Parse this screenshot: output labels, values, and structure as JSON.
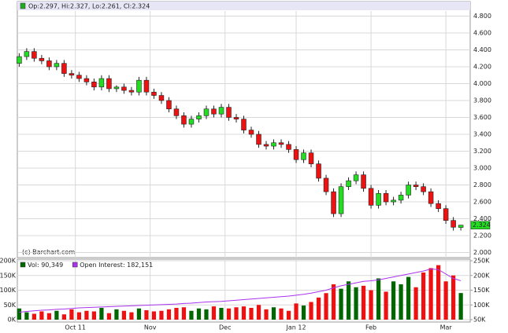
{
  "chart_data": [
    {
      "type": "candlestick",
      "header": "Op:2.297, Hi:2.327, Lo:2.261, Cl:2.324",
      "credit": "(c) Barchart.com",
      "last_label": "2.324",
      "up_color": "#22dd22",
      "down_color": "#ee1111",
      "grid": true,
      "x": [
        0,
        2,
        4,
        6,
        8,
        10,
        12,
        14,
        16,
        18,
        20,
        22,
        24,
        26,
        28,
        30,
        32,
        34,
        36,
        38,
        40,
        42,
        44,
        46,
        48,
        50,
        52,
        54,
        56,
        58,
        60,
        62,
        64,
        66,
        68,
        70,
        72,
        74,
        76,
        78,
        80,
        82,
        84,
        86,
        88,
        90,
        92,
        94,
        96,
        98,
        100,
        102,
        104,
        106,
        108,
        110,
        112,
        114,
        116,
        118
      ],
      "open": [
        4.24,
        4.32,
        4.38,
        4.3,
        4.27,
        4.2,
        4.24,
        4.12,
        4.1,
        4.06,
        4.02,
        3.96,
        4.06,
        3.94,
        3.96,
        3.92,
        3.9,
        4.04,
        3.9,
        3.86,
        3.8,
        3.7,
        3.62,
        3.52,
        3.58,
        3.62,
        3.7,
        3.64,
        3.72,
        3.6,
        3.58,
        3.45,
        3.4,
        3.28,
        3.26,
        3.3,
        3.28,
        3.22,
        3.1,
        3.18,
        3.05,
        2.88,
        2.72,
        2.46,
        2.78,
        2.85,
        2.92,
        2.76,
        2.56,
        2.7,
        2.6,
        2.62,
        2.68,
        2.8,
        2.78,
        2.72,
        2.58,
        2.52,
        2.38,
        2.297
      ],
      "high": [
        4.36,
        4.42,
        4.42,
        4.34,
        4.31,
        4.28,
        4.28,
        4.16,
        4.14,
        4.1,
        4.06,
        4.1,
        4.1,
        3.98,
        4.0,
        3.96,
        4.08,
        4.08,
        3.94,
        3.9,
        3.84,
        3.74,
        3.66,
        3.62,
        3.66,
        3.74,
        3.74,
        3.76,
        3.76,
        3.64,
        3.62,
        3.49,
        3.44,
        3.32,
        3.34,
        3.34,
        3.32,
        3.26,
        3.22,
        3.22,
        3.09,
        2.92,
        2.76,
        2.82,
        2.89,
        2.96,
        2.96,
        2.8,
        2.74,
        2.74,
        2.66,
        2.72,
        2.84,
        2.84,
        2.82,
        2.76,
        2.62,
        2.56,
        2.42,
        2.327
      ],
      "low": [
        4.2,
        4.28,
        4.26,
        4.23,
        4.16,
        4.16,
        4.08,
        4.06,
        4.02,
        3.98,
        3.92,
        3.92,
        3.9,
        3.9,
        3.88,
        3.86,
        3.86,
        3.86,
        3.82,
        3.76,
        3.66,
        3.58,
        3.48,
        3.48,
        3.54,
        3.58,
        3.6,
        3.6,
        3.56,
        3.54,
        3.41,
        3.36,
        3.24,
        3.22,
        3.22,
        3.24,
        3.18,
        3.06,
        3.06,
        3.01,
        2.84,
        2.68,
        2.42,
        2.42,
        2.74,
        2.81,
        2.72,
        2.52,
        2.52,
        2.56,
        2.56,
        2.58,
        2.64,
        2.74,
        2.68,
        2.54,
        2.48,
        2.34,
        2.26,
        2.261
      ],
      "close": [
        4.32,
        4.38,
        4.3,
        4.27,
        4.2,
        4.24,
        4.12,
        4.1,
        4.06,
        4.02,
        3.96,
        4.06,
        3.94,
        3.96,
        3.92,
        3.9,
        4.04,
        3.9,
        3.86,
        3.8,
        3.7,
        3.62,
        3.52,
        3.58,
        3.62,
        3.7,
        3.64,
        3.72,
        3.6,
        3.58,
        3.45,
        3.4,
        3.28,
        3.26,
        3.3,
        3.28,
        3.22,
        3.1,
        3.18,
        3.05,
        2.88,
        2.72,
        2.46,
        2.78,
        2.85,
        2.92,
        2.76,
        2.56,
        2.7,
        2.6,
        2.62,
        2.68,
        2.8,
        2.78,
        2.72,
        2.58,
        2.52,
        2.38,
        2.3,
        2.324
      ],
      "xlim": [
        -0.5,
        120.5
      ],
      "ylim": [
        1.94,
        4.86
      ],
      "yticks": [
        {
          "value": 2.0,
          "label": "2.000"
        },
        {
          "value": 2.2,
          "label": "2.200"
        },
        {
          "value": 2.4,
          "label": "2.400"
        },
        {
          "value": 2.6,
          "label": "2.600"
        },
        {
          "value": 2.8,
          "label": "2.800"
        },
        {
          "value": 3.0,
          "label": "3.000"
        },
        {
          "value": 3.2,
          "label": "3.200"
        },
        {
          "value": 3.4,
          "label": "3.400"
        },
        {
          "value": 3.6,
          "label": "3.600"
        },
        {
          "value": 3.8,
          "label": "3.800"
        },
        {
          "value": 4.0,
          "label": "4.000"
        },
        {
          "value": 4.2,
          "label": "4.200"
        },
        {
          "value": 4.4,
          "label": "4.400"
        },
        {
          "value": 4.6,
          "label": "4.600"
        },
        {
          "value": 4.8,
          "label": "4.800"
        }
      ]
    },
    {
      "type": "bar",
      "series": [
        {
          "name": "Vol: 90,349",
          "color": "#006600",
          "values": [
            38000,
            25000,
            20000,
            28000,
            22000,
            30000,
            18000,
            35000,
            25000,
            30000,
            28000,
            40000,
            22000,
            35000,
            30000,
            25000,
            38000,
            32000,
            28000,
            30000,
            35000,
            40000,
            42000,
            30000,
            38000,
            35000,
            45000,
            40000,
            38000,
            42000,
            45000,
            40000,
            50000,
            35000,
            42000,
            38000,
            30000,
            55000,
            48000,
            60000,
            75000,
            90000,
            120000,
            105000,
            130000,
            110000,
            115000,
            100000,
            140000,
            95000,
            130000,
            120000,
            145000,
            110000,
            160000,
            175000,
            185000,
            130000,
            150000,
            90349
          ]
        },
        {
          "name": "Open Interest: 182,151",
          "color": "#aa33ee",
          "axis": "y2",
          "values": [
            75000,
            78000,
            80000,
            82000,
            83000,
            85000,
            86000,
            88000,
            90000,
            91000,
            92000,
            93000,
            94000,
            95000,
            96000,
            97000,
            98000,
            99000,
            100000,
            101000,
            102000,
            103000,
            105000,
            106000,
            108000,
            110000,
            111000,
            112000,
            114000,
            116000,
            118000,
            120000,
            122000,
            124000,
            126000,
            128000,
            130000,
            133000,
            136000,
            140000,
            145000,
            150000,
            158000,
            165000,
            170000,
            175000,
            180000,
            182000,
            185000,
            190000,
            195000,
            200000,
            205000,
            210000,
            215000,
            222000,
            220000,
            205000,
            190000,
            182151
          ]
        }
      ],
      "xticks": [
        {
          "value": 15,
          "label": "Oct 11"
        },
        {
          "value": 35,
          "label": "Nov"
        },
        {
          "value": 55,
          "label": "Dec"
        },
        {
          "value": 74,
          "label": "Jan 12"
        },
        {
          "value": 94,
          "label": "Feb"
        },
        {
          "value": 114,
          "label": "Mar"
        }
      ],
      "ylim": [
        0,
        200000
      ],
      "yticks": [
        {
          "value": 0,
          "label": "0K"
        },
        {
          "value": 50000,
          "label": "50K"
        },
        {
          "value": 100000,
          "label": "100K"
        },
        {
          "value": 150000,
          "label": "150K"
        },
        {
          "value": 200000,
          "label": "200K"
        }
      ],
      "y2lim": [
        50000,
        250000
      ],
      "y2ticks": [
        {
          "value": 50000,
          "label": "50K"
        },
        {
          "value": 100000,
          "label": "100K"
        },
        {
          "value": 150000,
          "label": "150K"
        },
        {
          "value": 200000,
          "label": "200K"
        },
        {
          "value": 250000,
          "label": "250K"
        }
      ]
    }
  ]
}
